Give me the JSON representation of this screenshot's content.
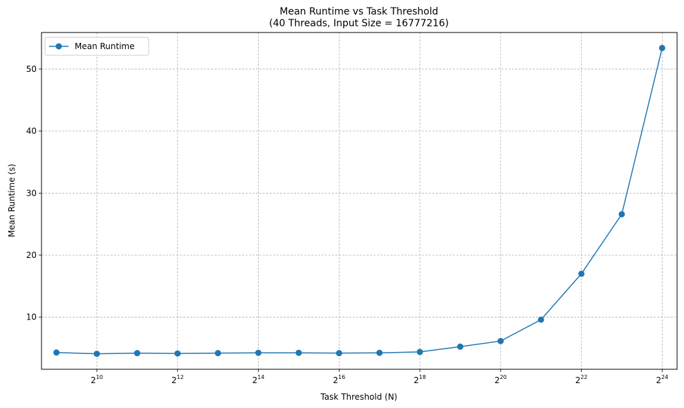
{
  "chart_data": {
    "type": "line",
    "title": "Mean Runtime vs Task Threshold",
    "subtitle": "(40 Threads, Input Size = 16777216)",
    "xlabel": "Task Threshold (N)",
    "ylabel": "Mean Runtime (s)",
    "x_scale": "log2",
    "x_tick_base": "2",
    "x": [
      512,
      1024,
      2048,
      4096,
      8192,
      16384,
      32768,
      65536,
      131072,
      262144,
      524288,
      1048576,
      2097152,
      4194304,
      8388608,
      16777216
    ],
    "x_ticks": [
      {
        "value": 1024,
        "exp": "10"
      },
      {
        "value": 4096,
        "exp": "12"
      },
      {
        "value": 16384,
        "exp": "14"
      },
      {
        "value": 65536,
        "exp": "16"
      },
      {
        "value": 262144,
        "exp": "18"
      },
      {
        "value": 1048576,
        "exp": "20"
      },
      {
        "value": 4194304,
        "exp": "22"
      },
      {
        "value": 16777216,
        "exp": "24"
      }
    ],
    "y_ticks": [
      "10",
      "20",
      "30",
      "40",
      "50"
    ],
    "ylim": [
      1.6,
      55.9
    ],
    "series": [
      {
        "name": "Mean Runtime",
        "color": "#1f77b4",
        "values": [
          4.3,
          4.1,
          4.2,
          4.15,
          4.2,
          4.25,
          4.25,
          4.2,
          4.25,
          4.4,
          5.25,
          6.15,
          9.6,
          17.0,
          26.6,
          53.4
        ]
      }
    ],
    "grid": true,
    "legend_position": "top-left"
  }
}
